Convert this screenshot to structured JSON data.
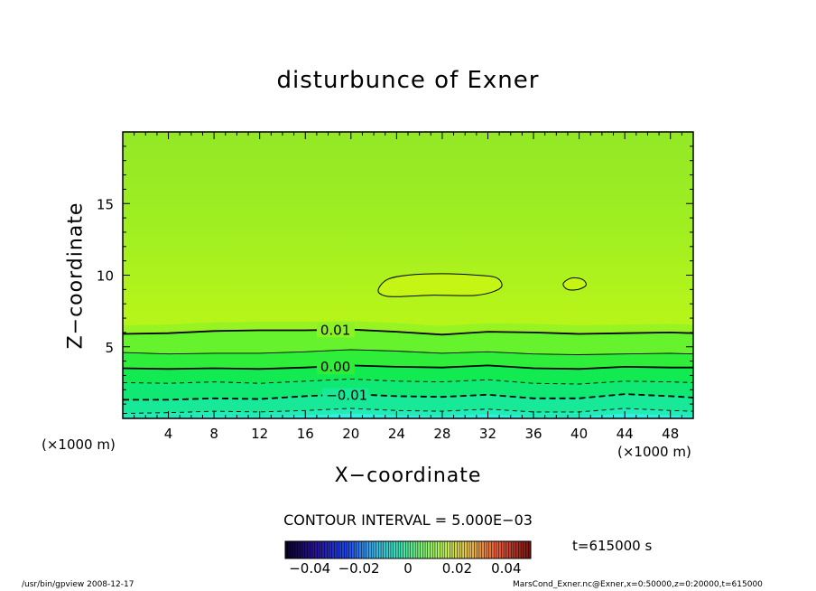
{
  "chart_data": {
    "type": "contour",
    "title": "disturbunce of Exner",
    "xlabel": "X−coordinate",
    "ylabel": "Z−coordinate",
    "x_unit_left": "(×1000 m)",
    "x_unit_right": "(×1000 m)",
    "xlim": [
      0,
      50
    ],
    "ylim": [
      0,
      20
    ],
    "x_ticks": [
      4,
      8,
      12,
      16,
      20,
      24,
      28,
      32,
      36,
      40,
      44,
      48
    ],
    "x_tick_labels": [
      "4",
      "8",
      "12",
      "16",
      "20",
      "24",
      "28",
      "32",
      "36",
      "40",
      "44",
      "48"
    ],
    "y_ticks": [
      5,
      10,
      15
    ],
    "y_tick_labels": [
      "5",
      "10",
      "15"
    ],
    "contour_interval_text": "CONTOUR INTERVAL = 5.000E−03",
    "time_label": "t=615000 s",
    "contour_lines": [
      {
        "label": "0.01",
        "value": 0.01,
        "style": "solid",
        "weight": "bold",
        "points": [
          [
            0,
            5.9
          ],
          [
            4,
            5.95
          ],
          [
            8,
            6.1
          ],
          [
            12,
            6.15
          ],
          [
            16,
            6.15
          ],
          [
            20,
            6.2
          ],
          [
            24,
            6.05
          ],
          [
            28,
            5.85
          ],
          [
            32,
            6.05
          ],
          [
            36,
            6.0
          ],
          [
            40,
            5.9
          ],
          [
            44,
            5.95
          ],
          [
            48,
            6.0
          ],
          [
            50,
            5.95
          ]
        ]
      },
      {
        "label": "",
        "value": 0.005,
        "style": "solid",
        "weight": "thin",
        "points": [
          [
            0,
            4.6
          ],
          [
            4,
            4.5
          ],
          [
            8,
            4.55
          ],
          [
            12,
            4.55
          ],
          [
            16,
            4.65
          ],
          [
            20,
            4.8
          ],
          [
            24,
            4.7
          ],
          [
            28,
            4.55
          ],
          [
            32,
            4.65
          ],
          [
            36,
            4.5
          ],
          [
            40,
            4.45
          ],
          [
            44,
            4.5
          ],
          [
            48,
            4.55
          ],
          [
            50,
            4.5
          ]
        ]
      },
      {
        "label": "0.00",
        "value": 0.0,
        "style": "solid",
        "weight": "bold",
        "points": [
          [
            0,
            3.5
          ],
          [
            4,
            3.45
          ],
          [
            8,
            3.5
          ],
          [
            12,
            3.45
          ],
          [
            16,
            3.55
          ],
          [
            20,
            3.7
          ],
          [
            24,
            3.6
          ],
          [
            28,
            3.55
          ],
          [
            32,
            3.7
          ],
          [
            36,
            3.5
          ],
          [
            40,
            3.45
          ],
          [
            44,
            3.6
          ],
          [
            48,
            3.55
          ],
          [
            50,
            3.55
          ]
        ]
      },
      {
        "label": "",
        "value": -0.005,
        "style": "dashed",
        "weight": "thin",
        "points": [
          [
            0,
            2.5
          ],
          [
            4,
            2.45
          ],
          [
            8,
            2.55
          ],
          [
            12,
            2.45
          ],
          [
            16,
            2.6
          ],
          [
            20,
            2.75
          ],
          [
            24,
            2.6
          ],
          [
            28,
            2.55
          ],
          [
            32,
            2.7
          ],
          [
            36,
            2.45
          ],
          [
            40,
            2.4
          ],
          [
            44,
            2.6
          ],
          [
            48,
            2.55
          ],
          [
            50,
            2.5
          ]
        ]
      },
      {
        "label": "−0.01",
        "value": -0.01,
        "style": "dashed",
        "weight": "bold",
        "points": [
          [
            0,
            1.3
          ],
          [
            4,
            1.3
          ],
          [
            8,
            1.4
          ],
          [
            12,
            1.35
          ],
          [
            16,
            1.55
          ],
          [
            20,
            1.7
          ],
          [
            24,
            1.55
          ],
          [
            28,
            1.5
          ],
          [
            32,
            1.65
          ],
          [
            36,
            1.4
          ],
          [
            40,
            1.4
          ],
          [
            44,
            1.7
          ],
          [
            48,
            1.55
          ],
          [
            50,
            1.45
          ]
        ]
      },
      {
        "label": "",
        "value": -0.015,
        "style": "dashed",
        "weight": "thin",
        "points": [
          [
            0,
            0.35
          ],
          [
            4,
            0.4
          ],
          [
            8,
            0.5
          ],
          [
            12,
            0.45
          ],
          [
            16,
            0.55
          ],
          [
            20,
            0.7
          ],
          [
            24,
            0.55
          ],
          [
            28,
            0.5
          ],
          [
            32,
            0.65
          ],
          [
            36,
            0.45
          ],
          [
            40,
            0.45
          ],
          [
            44,
            0.7
          ],
          [
            48,
            0.55
          ],
          [
            50,
            0.5
          ]
        ]
      }
    ],
    "closed_contours": [
      {
        "points": [
          [
            22.4,
            9.0
          ],
          [
            23.2,
            9.7
          ],
          [
            25.0,
            10.0
          ],
          [
            28.0,
            10.1
          ],
          [
            31.0,
            10.0
          ],
          [
            32.8,
            9.8
          ],
          [
            33.1,
            9.1
          ],
          [
            31.0,
            8.6
          ],
          [
            27.0,
            8.6
          ],
          [
            24.0,
            8.5
          ],
          [
            22.8,
            8.6
          ]
        ]
      },
      {
        "points": [
          [
            38.6,
            9.4
          ],
          [
            39.3,
            9.8
          ],
          [
            40.3,
            9.7
          ],
          [
            40.6,
            9.3
          ],
          [
            39.9,
            9.0
          ],
          [
            39.0,
            9.0
          ]
        ]
      }
    ],
    "fill_bands": [
      {
        "to": 0.35,
        "color": "#33f0e2"
      },
      {
        "to": 0.8,
        "color": "#22ecb6"
      },
      {
        "to": 1.3,
        "color": "#18e998"
      },
      {
        "to": 2.5,
        "color": "#10e874"
      },
      {
        "to": 3.5,
        "color": "#12ea52"
      },
      {
        "to": 4.6,
        "color": "#2fee3a"
      },
      {
        "to": 5.9,
        "color": "#66f22c"
      },
      {
        "to": 20,
        "color": "#aef41c"
      }
    ],
    "colorbar": {
      "ticks": [
        -0.04,
        -0.02,
        0,
        0.02,
        0.04
      ],
      "tick_labels": [
        "−0.04",
        "−0.02",
        "0",
        "0.02",
        "0.04"
      ],
      "range": [
        -0.05,
        0.05
      ]
    }
  },
  "footer": {
    "left": "/usr/bin/gpview   2008-12-17",
    "right": "MarsCond_Exner.nc@Exner,x=0:50000,z=0:20000,t=615000"
  }
}
